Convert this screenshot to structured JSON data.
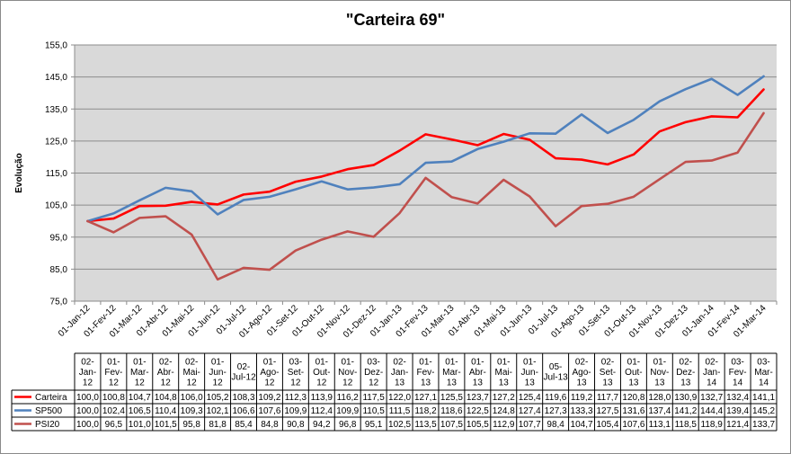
{
  "chart_data": {
    "type": "line",
    "title": "\"Carteira 69\"",
    "ylabel": "Evolução",
    "xlabel": "",
    "ylim": [
      75,
      155
    ],
    "yticks": [
      "75,0",
      "85,0",
      "95,0",
      "105,0",
      "115,0",
      "125,0",
      "135,0",
      "145,0",
      "155,0"
    ],
    "ytick_values": [
      75,
      85,
      95,
      105,
      115,
      125,
      135,
      145,
      155
    ],
    "grid": true,
    "legend": "data-table-bottom",
    "categories": [
      "01-Jan-12",
      "01-Fev-12",
      "01-Mar-12",
      "01-Abr-12",
      "01-Mai-12",
      "01-Jun-12",
      "01-Jul-12",
      "01-Ago-12",
      "01-Set-12",
      "01-Out-12",
      "01-Nov-12",
      "01-Dez-12",
      "01-Jan-13",
      "01-Fev-13",
      "01-Mar-13",
      "01-Abr-13",
      "01-Mai-13",
      "01-Jun-13",
      "01-Jul-13",
      "01-Ago-13",
      "01-Set-13",
      "01-Out-13",
      "01-Nov-13",
      "01-Dez-13",
      "01-Jan-14",
      "01-Fev-14",
      "01-Mar-14"
    ],
    "table_headers": [
      [
        "02-",
        "Jan-",
        "12"
      ],
      [
        "01-",
        "Fev-",
        "12"
      ],
      [
        "01-",
        "Mar-",
        "12"
      ],
      [
        "02-",
        "Abr-",
        "12"
      ],
      [
        "02-",
        "Mai-",
        "12"
      ],
      [
        "01-",
        "Jun-",
        "12"
      ],
      [
        "02-",
        "Jul-12"
      ],
      [
        "01-",
        "Ago-",
        "12"
      ],
      [
        "03-",
        "Set-",
        "12"
      ],
      [
        "01-",
        "Out-",
        "12"
      ],
      [
        "01-",
        "Nov-",
        "12"
      ],
      [
        "03-",
        "Dez-",
        "12"
      ],
      [
        "02-",
        "Jan-",
        "13"
      ],
      [
        "01-",
        "Fev-",
        "13"
      ],
      [
        "01-",
        "Mar-",
        "13"
      ],
      [
        "01-",
        "Abr-",
        "13"
      ],
      [
        "01-",
        "Mai-",
        "13"
      ],
      [
        "01-",
        "Jun-",
        "13"
      ],
      [
        "05-",
        "Jul-13"
      ],
      [
        "02-",
        "Ago-",
        "13"
      ],
      [
        "02-",
        "Set-",
        "13"
      ],
      [
        "01-",
        "Out-",
        "13"
      ],
      [
        "01-",
        "Nov-",
        "13"
      ],
      [
        "02-",
        "Dez-",
        "13"
      ],
      [
        "02-",
        "Jan-",
        "14"
      ],
      [
        "03-",
        "Fev-",
        "14"
      ],
      [
        "03-",
        "Mar-",
        "14"
      ]
    ],
    "series": [
      {
        "name": "Carteira",
        "color": "#ff0000",
        "values": [
          100.0,
          100.8,
          104.7,
          104.8,
          106.0,
          105.2,
          108.3,
          109.2,
          112.3,
          113.9,
          116.2,
          117.5,
          122.0,
          127.1,
          125.5,
          123.7,
          127.2,
          125.4,
          119.6,
          119.2,
          117.7,
          120.8,
          128.0,
          130.9,
          132.7,
          132.4,
          141.1
        ],
        "labels": [
          "100,0",
          "100,8",
          "104,7",
          "104,8",
          "106,0",
          "105,2",
          "108,3",
          "109,2",
          "112,3",
          "113,9",
          "116,2",
          "117,5",
          "122,0",
          "127,1",
          "125,5",
          "123,7",
          "127,2",
          "125,4",
          "119,6",
          "119,2",
          "117,7",
          "120,8",
          "128,0",
          "130,9",
          "132,7",
          "132,4",
          "141,1"
        ]
      },
      {
        "name": "SP500",
        "color": "#4f81bd",
        "values": [
          100.0,
          102.4,
          106.5,
          110.4,
          109.3,
          102.1,
          106.6,
          107.6,
          109.9,
          112.4,
          109.9,
          110.5,
          111.5,
          118.2,
          118.6,
          122.5,
          124.8,
          127.4,
          127.3,
          133.3,
          127.5,
          131.6,
          137.4,
          141.2,
          144.4,
          139.4,
          145.2
        ],
        "labels": [
          "100,0",
          "102,4",
          "106,5",
          "110,4",
          "109,3",
          "102,1",
          "106,6",
          "107,6",
          "109,9",
          "112,4",
          "109,9",
          "110,5",
          "111,5",
          "118,2",
          "118,6",
          "122,5",
          "124,8",
          "127,4",
          "127,3",
          "133,3",
          "127,5",
          "131,6",
          "137,4",
          "141,2",
          "144,4",
          "139,4",
          "145,2"
        ]
      },
      {
        "name": "PSI20",
        "color": "#c0504d",
        "values": [
          100.0,
          96.5,
          101.0,
          101.5,
          95.8,
          81.8,
          85.4,
          84.8,
          90.8,
          94.2,
          96.8,
          95.1,
          102.5,
          113.5,
          107.5,
          105.5,
          112.9,
          107.7,
          98.4,
          104.7,
          105.4,
          107.6,
          113.1,
          118.5,
          118.9,
          121.4,
          133.7
        ],
        "labels": [
          "100,0",
          "96,5",
          "101,0",
          "101,5",
          "95,8",
          "81,8",
          "85,4",
          "84,8",
          "90,8",
          "94,2",
          "96,8",
          "95,1",
          "102,5",
          "113,5",
          "107,5",
          "105,5",
          "112,9",
          "107,7",
          "98,4",
          "104,7",
          "105,4",
          "107,6",
          "113,1",
          "118,5",
          "118,9",
          "121,4",
          "133,7"
        ]
      }
    ]
  }
}
